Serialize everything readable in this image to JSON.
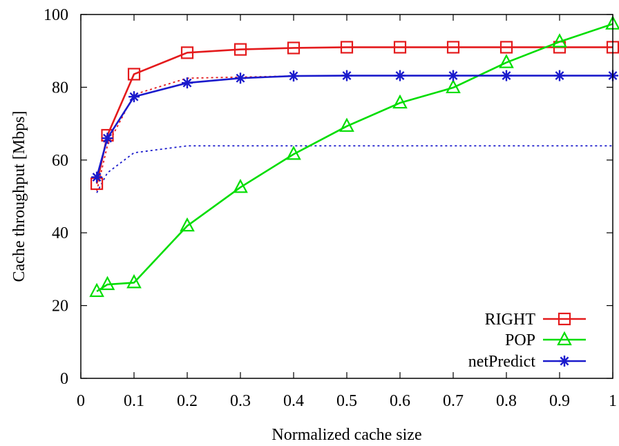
{
  "chart_data": {
    "type": "line",
    "title": "",
    "xlabel": "Normalized cache size",
    "ylabel": "Cache throughput [Mbps]",
    "xlim": [
      0,
      1
    ],
    "ylim": [
      0,
      100
    ],
    "x_ticks": [
      0,
      0.1,
      0.2,
      0.3,
      0.4,
      0.5,
      0.6,
      0.7,
      0.8,
      0.9,
      1
    ],
    "x_tick_labels": [
      "0",
      "0.1",
      "0.2",
      "0.3",
      "0.4",
      "0.5",
      "0.6",
      "0.7",
      "0.8",
      "0.9",
      "1"
    ],
    "y_ticks": [
      0,
      20,
      40,
      60,
      80,
      100
    ],
    "y_tick_labels": [
      "0",
      "20",
      "40",
      "60",
      "80",
      "100"
    ],
    "grid": false,
    "legend_position": "bottom-right",
    "series": [
      {
        "name": "RIGHT",
        "color": "#e41a1c",
        "marker": "square",
        "x": [
          0.03,
          0.05,
          0.1,
          0.2,
          0.3,
          0.4,
          0.5,
          0.6,
          0.7,
          0.8,
          0.9,
          1.0
        ],
        "values": [
          53.5,
          66.8,
          83.6,
          89.5,
          90.4,
          90.8,
          91.0,
          91.0,
          91.0,
          91.0,
          91.0,
          91.0
        ]
      },
      {
        "name": "POP",
        "color": "#00dd00",
        "marker": "triangle",
        "x": [
          0.03,
          0.05,
          0.1,
          0.2,
          0.3,
          0.4,
          0.5,
          0.6,
          0.7,
          0.8,
          0.9,
          1.0
        ],
        "values": [
          23.9,
          25.8,
          26.3,
          41.9,
          52.5,
          61.6,
          69.3,
          75.7,
          79.9,
          86.8,
          92.5,
          97.4
        ]
      },
      {
        "name": "netPredict",
        "color": "#1a1acc",
        "marker": "asterisk",
        "x": [
          0.03,
          0.05,
          0.1,
          0.2,
          0.3,
          0.4,
          0.5,
          0.6,
          0.7,
          0.8,
          0.9,
          1.0
        ],
        "values": [
          55.3,
          66.0,
          77.4,
          81.2,
          82.5,
          83.1,
          83.2,
          83.2,
          83.2,
          83.2,
          83.2,
          83.2
        ]
      }
    ],
    "reference_lines": [
      {
        "color": "#e41a1c",
        "style": "dotted",
        "x": [
          0.03,
          0.05,
          0.1,
          0.2,
          0.3,
          0.4,
          0.5,
          0.6,
          0.7,
          0.8,
          0.9,
          1.0
        ],
        "values": [
          51.5,
          64.0,
          78.0,
          82.5,
          82.8,
          83.1,
          83.2,
          83.2,
          83.2,
          83.2,
          83.2,
          83.2
        ]
      },
      {
        "color": "#1a1acc",
        "style": "dotted",
        "x": [
          0.03,
          0.05,
          0.1,
          0.2,
          0.3,
          0.4,
          0.5,
          0.6,
          0.7,
          0.8,
          0.9,
          1.0
        ],
        "values": [
          51.0,
          56.5,
          62.0,
          63.9,
          63.9,
          63.9,
          63.9,
          63.9,
          63.9,
          63.9,
          63.9,
          63.9
        ]
      }
    ]
  }
}
